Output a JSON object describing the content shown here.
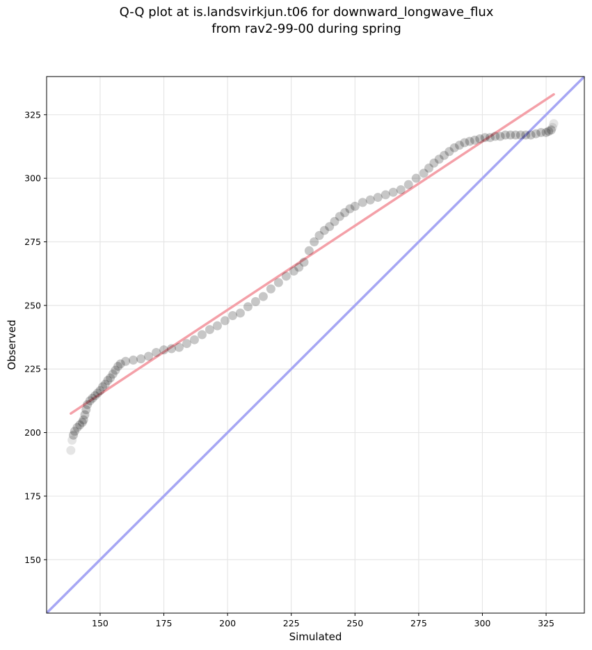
{
  "chart_data": {
    "type": "scatter",
    "title_line1": "Q-Q plot at is.landsvirkjun.t06 for downward_longwave_flux",
    "title_line2": "from rav2-99-00 during spring",
    "xlabel": "Simulated",
    "ylabel": "Observed",
    "xlim": [
      129,
      340
    ],
    "ylim": [
      129,
      340
    ],
    "xticks": [
      150,
      175,
      200,
      225,
      250,
      275,
      300,
      325
    ],
    "yticks": [
      150,
      175,
      200,
      225,
      250,
      275,
      300,
      325
    ],
    "grid": true,
    "colors": {
      "points": "#000000",
      "fit_line": "#f4a0a8",
      "identity_line": "#a6a6f4"
    },
    "fit_line": {
      "x": [
        138.5,
        328
      ],
      "y": [
        207.5,
        333
      ]
    },
    "identity_line": {
      "x": [
        129,
        340
      ],
      "y": [
        129,
        340
      ]
    },
    "quantiles": {
      "x": [
        138.5,
        139,
        139.5,
        140,
        141,
        142,
        143,
        143.5,
        144,
        144.5,
        145,
        146,
        147,
        148,
        149,
        150,
        151,
        152,
        153,
        154,
        155,
        156,
        157,
        158,
        160,
        163,
        166,
        169,
        172,
        175,
        178,
        181,
        184,
        187,
        190,
        193,
        196,
        199,
        202,
        205,
        208,
        211,
        214,
        217,
        220,
        223,
        226,
        228,
        230,
        232,
        234,
        236,
        238,
        240,
        242,
        244,
        246,
        248,
        250,
        253,
        256,
        259,
        262,
        265,
        268,
        271,
        274,
        277,
        279,
        281,
        283,
        285,
        287,
        289,
        291,
        293,
        295,
        297,
        299,
        301,
        303,
        305,
        307,
        309,
        311,
        313,
        315,
        317,
        319,
        321,
        323,
        325,
        326,
        327,
        327.5,
        328
      ],
      "y": [
        193,
        197,
        199,
        200.5,
        202,
        203,
        204,
        205,
        207,
        209,
        211,
        212.5,
        213.5,
        214.5,
        215.5,
        216.5,
        218,
        219,
        220.5,
        221.5,
        223,
        224.5,
        226,
        227,
        228,
        228.5,
        229,
        230,
        231.5,
        232.5,
        233,
        233.5,
        235,
        236.5,
        238.5,
        240.5,
        242,
        244,
        246,
        247,
        249.5,
        251.5,
        253.5,
        256.5,
        259,
        261.5,
        263.5,
        265,
        267,
        271.5,
        275,
        277.5,
        279.5,
        281,
        283,
        285,
        286.5,
        288,
        289,
        290.5,
        291.5,
        292.5,
        293.5,
        294.5,
        295.5,
        297.5,
        300,
        302,
        304,
        306,
        307.5,
        309,
        310.5,
        312,
        313,
        314,
        314.5,
        315,
        315.5,
        316,
        316,
        316.5,
        316.5,
        317,
        317,
        317,
        317,
        317,
        317,
        317.5,
        318,
        318,
        318.5,
        319,
        320,
        321.5
      ]
    }
  }
}
